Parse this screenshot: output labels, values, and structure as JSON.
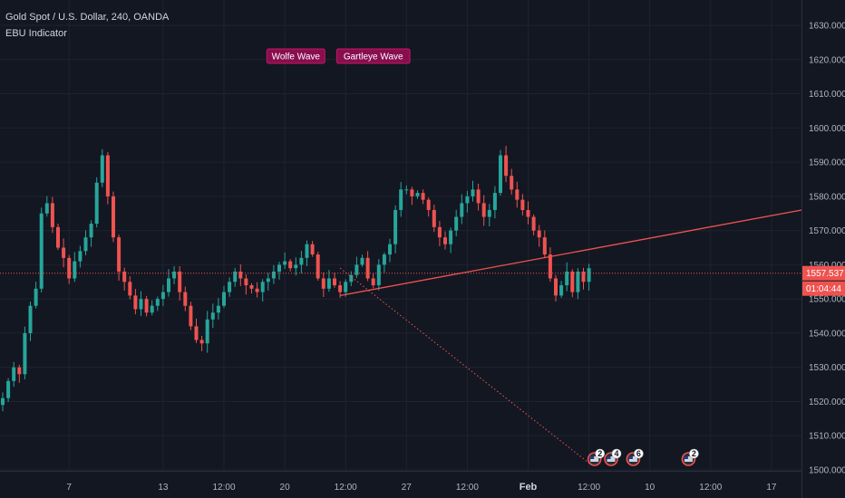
{
  "chart_data": {
    "type": "candlestick",
    "title": "Gold Spot / U.S. Dollar, 240, OANDA",
    "indicator": "EBU Indicator",
    "ylim": [
      1496,
      1636
    ],
    "y_ticks": [
      1500,
      1510,
      1520,
      1530,
      1540,
      1550,
      1560,
      1570,
      1580,
      1590,
      1600,
      1610,
      1620,
      1630
    ],
    "y_tick_labels": [
      "1500.000",
      "1510.000",
      "1520.000",
      "1530.000",
      "1540.000",
      "1550.000",
      "1560.000",
      "1570.000",
      "1580.000",
      "1590.000",
      "1600.000",
      "1610.000",
      "1620.000",
      "1630.000"
    ],
    "x_ticks": [
      {
        "label": "7",
        "bar": 12,
        "bold": false
      },
      {
        "label": "13",
        "bar": 29,
        "bold": false
      },
      {
        "label": "12:00",
        "bar": 40,
        "bold": false
      },
      {
        "label": "20",
        "bar": 51,
        "bold": false
      },
      {
        "label": "12:00",
        "bar": 62,
        "bold": false
      },
      {
        "label": "27",
        "bar": 73,
        "bold": false
      },
      {
        "label": "12:00",
        "bar": 84,
        "bold": false
      },
      {
        "label": "Feb",
        "bar": 95,
        "bold": true
      },
      {
        "label": "12:00",
        "bar": 106,
        "bold": false
      },
      {
        "label": "10",
        "bar": 117,
        "bold": false
      },
      {
        "label": "12:00",
        "bar": 128,
        "bold": false
      },
      {
        "label": "17",
        "bar": 139,
        "bold": false
      }
    ],
    "closes": [
      1521,
      1526,
      1530,
      1528,
      1540,
      1548,
      1553,
      1575,
      1578,
      1571,
      1565,
      1562,
      1556,
      1561,
      1564,
      1568,
      1572,
      1584,
      1592,
      1580,
      1568,
      1558,
      1555,
      1551,
      1547,
      1550,
      1546,
      1548,
      1550,
      1552,
      1556,
      1558,
      1552,
      1548,
      1542,
      1538,
      1537,
      1544,
      1546,
      1548,
      1552,
      1555,
      1558,
      1556,
      1554,
      1553,
      1552,
      1555,
      1556,
      1558,
      1560,
      1561,
      1559,
      1560,
      1562,
      1566,
      1563,
      1556,
      1553,
      1556,
      1554,
      1552,
      1555,
      1557,
      1560,
      1562,
      1556,
      1554,
      1560,
      1563,
      1566,
      1576,
      1582,
      1582,
      1580,
      1581,
      1579,
      1576,
      1571,
      1568,
      1566,
      1570,
      1574,
      1578,
      1580,
      1582,
      1578,
      1574,
      1576,
      1581,
      1592,
      1586,
      1582,
      1579,
      1576,
      1574,
      1570,
      1568,
      1563,
      1556,
      1551,
      1554,
      1558,
      1552,
      1558,
      1555,
      1559
    ],
    "current_price": 1557.537,
    "current_price_label": "1557.537",
    "countdown": "01:04:44",
    "trend_lines": [
      {
        "from": {
          "bar": 61,
          "price": 1551
        },
        "to": {
          "bar": 147,
          "price": 1576
        },
        "style": "solid"
      },
      {
        "from": {
          "bar": 61,
          "price": 1559
        },
        "to": {
          "bar": 106,
          "price": 1502
        },
        "style": "dotted"
      }
    ],
    "pattern_labels": [
      {
        "text": "Wolfe Wave",
        "bar": 53,
        "price": 1621
      },
      {
        "text": "Gartleye Wave",
        "bar": 67,
        "price": 1621
      }
    ],
    "event_markers": [
      {
        "bar": 107,
        "count": "2"
      },
      {
        "bar": 110,
        "count": "4"
      },
      {
        "bar": 114,
        "count": "6"
      },
      {
        "bar": 124,
        "count": "2"
      }
    ],
    "colors": {
      "background": "#131722",
      "up": "#26a69a",
      "down": "#ef5350",
      "grid": "#1f2330",
      "axis_text": "#b2b5be"
    }
  }
}
